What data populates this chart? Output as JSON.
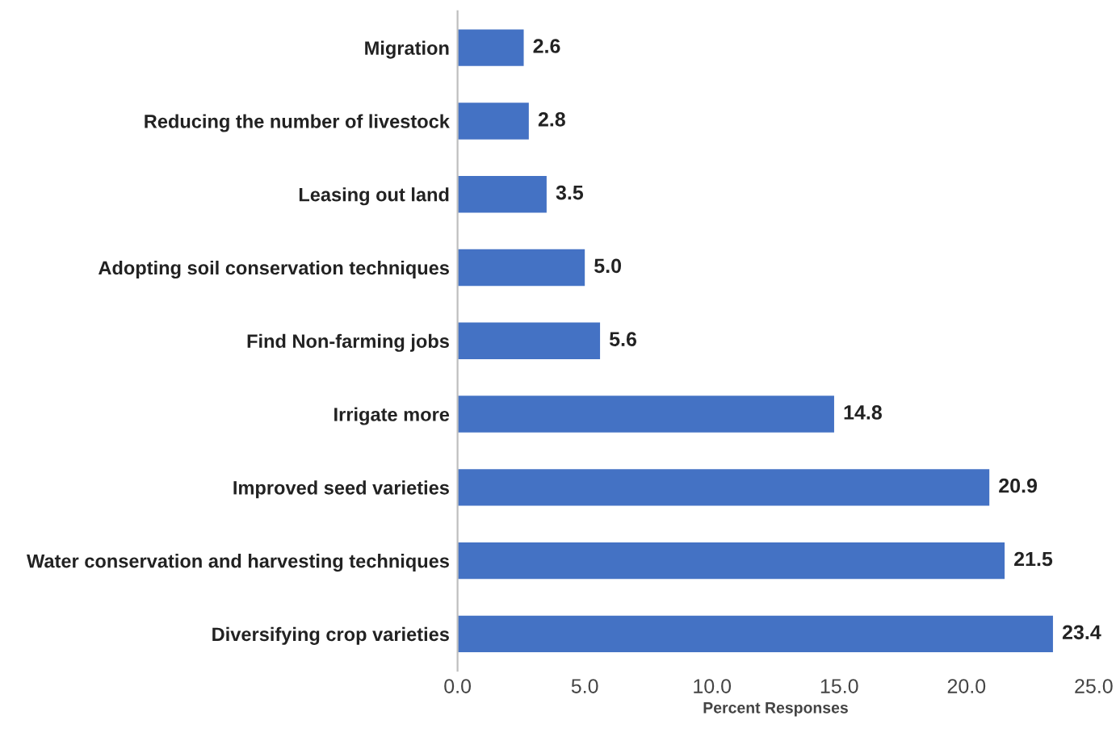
{
  "chart_data": {
    "type": "bar",
    "orientation": "horizontal",
    "xlabel": "Percent Responses",
    "categories": [
      "Migration",
      "Reducing the number of livestock",
      "Leasing out land",
      "Adopting soil conservation techniques",
      "Find Non-farming jobs",
      "Irrigate more",
      "Improved seed varieties",
      "Water conservation and harvesting techniques",
      "Diversifying crop varieties"
    ],
    "values": [
      2.6,
      2.8,
      3.5,
      5.0,
      5.6,
      14.8,
      20.9,
      21.5,
      23.4
    ],
    "value_labels": [
      "2.6",
      "2.8",
      "3.5",
      "5.0",
      "5.6",
      "14.8",
      "20.9",
      "21.5",
      "23.4"
    ],
    "color": "#4472c4",
    "xlim": [
      0,
      25
    ],
    "xticks": [
      {
        "value": 0,
        "label": "0.0"
      },
      {
        "value": 5,
        "label": "5.0"
      },
      {
        "value": 10,
        "label": "10.0"
      },
      {
        "value": 15,
        "label": "15.0"
      },
      {
        "value": 20,
        "label": "20.0"
      },
      {
        "value": 25,
        "label": "25.0"
      }
    ],
    "grid": false
  }
}
